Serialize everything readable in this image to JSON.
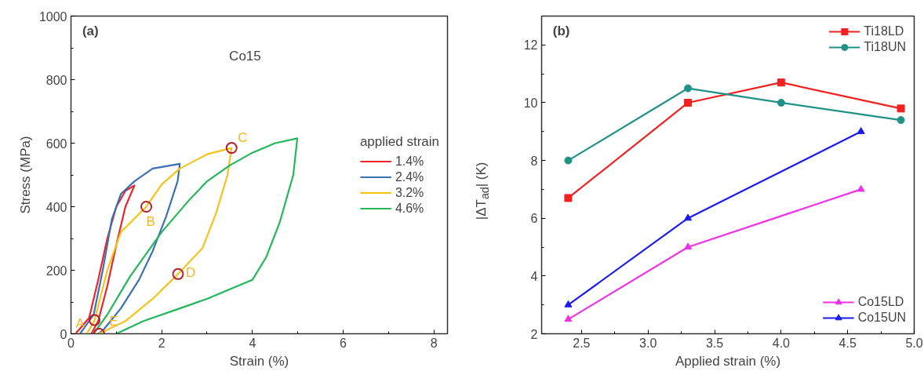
{
  "chart_data": [
    {
      "type": "line",
      "xlabel": "Strain (%)",
      "ylabel": "Stress (MPa)",
      "legend_title": "applied strain",
      "legend": "right",
      "grid": false,
      "xlim": [
        0,
        8.3
      ],
      "ylim": [
        0,
        1000
      ],
      "xticks": [
        0,
        2,
        4,
        6,
        8
      ],
      "yticks": [
        0,
        200,
        400,
        600,
        800,
        1000
      ],
      "annotations": [
        "(a)",
        "Co15",
        {
          "text": "A",
          "x": 0.52,
          "y": 43
        },
        {
          "text": "B",
          "x": 1.66,
          "y": 400
        },
        {
          "text": "C",
          "x": 3.54,
          "y": 585
        },
        {
          "text": "D",
          "x": 2.36,
          "y": 188
        },
        {
          "text": "E",
          "x": 0.62,
          "y": 0
        }
      ],
      "series": [
        {
          "name": "1.4%",
          "color": "#e8262b",
          "x": [
            0.1,
            0.4,
            0.6,
            0.8,
            1.0,
            1.2,
            1.4,
            1.2,
            1.0,
            0.8,
            0.6,
            0.45
          ],
          "values": [
            0,
            50,
            170,
            300,
            400,
            450,
            467,
            400,
            280,
            150,
            40,
            0
          ]
        },
        {
          "name": "2.4%",
          "color": "#3b6fb6",
          "x": [
            0.2,
            0.5,
            0.7,
            0.9,
            1.1,
            1.4,
            1.8,
            2.4,
            2.35,
            2.1,
            1.8,
            1.5,
            1.1,
            0.7,
            0.6
          ],
          "values": [
            0,
            60,
            200,
            360,
            440,
            480,
            520,
            535,
            480,
            370,
            260,
            170,
            80,
            10,
            0
          ]
        },
        {
          "name": "3.2%",
          "color": "#f7c21b",
          "x": [
            0.35,
            0.52,
            0.8,
            1.1,
            1.66,
            2.0,
            2.4,
            3.0,
            3.54,
            3.45,
            3.2,
            2.9,
            2.36,
            1.8,
            1.2,
            0.62
          ],
          "values": [
            0,
            43,
            200,
            320,
            400,
            470,
            520,
            565,
            585,
            500,
            380,
            270,
            188,
            110,
            40,
            0
          ]
        },
        {
          "name": "4.6%",
          "color": "#22b85a",
          "x": [
            0.5,
            0.8,
            1.3,
            2.0,
            2.6,
            3.0,
            3.5,
            4.0,
            4.5,
            4.99,
            4.9,
            4.6,
            4.3,
            4.0,
            3.5,
            3.0,
            2.4,
            1.6,
            1.0
          ],
          "values": [
            0,
            60,
            180,
            320,
            420,
            480,
            530,
            570,
            600,
            615,
            500,
            350,
            240,
            170,
            140,
            110,
            80,
            40,
            0
          ]
        },
        {
          "type": "scatter",
          "marker": "circle",
          "color": "#b5202a",
          "x": [
            0.52,
            1.66,
            3.54,
            2.36,
            0.62
          ],
          "values": [
            43,
            400,
            585,
            188,
            0
          ]
        }
      ]
    },
    {
      "type": "line",
      "xlabel": "Applied strain (%)",
      "ylabel": "|ΔT$_{ad}$| (K)",
      "grid": false,
      "xlim": [
        2.2,
        5.0
      ],
      "ylim": [
        2,
        13
      ],
      "xticks": [
        2.5,
        {
          "value": 3,
          "label": "3.0"
        },
        3.5,
        {
          "value": 4,
          "label": "4.0"
        },
        4.5,
        {
          "value": 5,
          "label": "5.0"
        }
      ],
      "yticks": [
        2,
        4,
        6,
        8,
        10,
        12
      ],
      "annotations": [
        "(b)"
      ],
      "legend": "right",
      "series": [
        {
          "name": "Ti18LD",
          "color": "#f2201f",
          "marker": "square",
          "x": [
            2.4,
            3.3,
            4.0,
            4.9
          ],
          "values": [
            6.7,
            10.0,
            10.7,
            9.8
          ]
        },
        {
          "name": "Ti18UN",
          "color": "#1f9187",
          "marker": "circle",
          "x": [
            2.4,
            3.3,
            4.0,
            4.9
          ],
          "values": [
            8.0,
            10.5,
            10.0,
            9.4
          ]
        },
        {
          "name": "Co15LD",
          "color": "#f032e6",
          "marker": "triangle",
          "x": [
            2.4,
            3.3,
            4.6
          ],
          "values": [
            2.5,
            5.0,
            7.0
          ]
        },
        {
          "name": "Co15UN",
          "color": "#1a1af0",
          "marker": "triangle",
          "x": [
            2.4,
            3.3,
            4.6
          ],
          "values": [
            3.0,
            6.0,
            9.0
          ]
        }
      ]
    }
  ]
}
